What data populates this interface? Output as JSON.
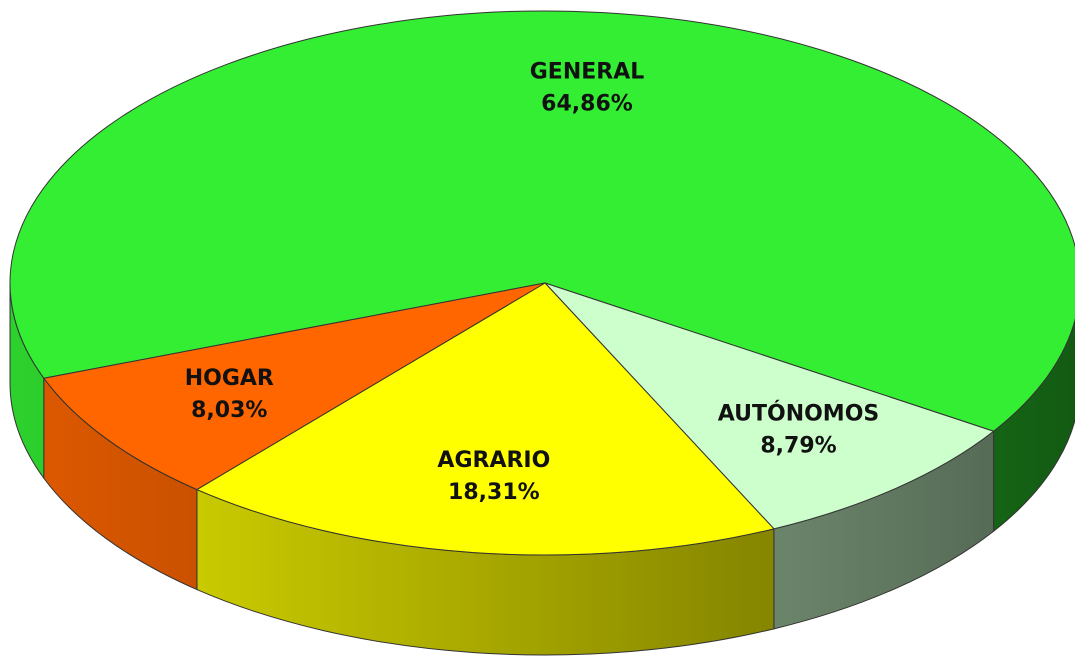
{
  "chart_data": {
    "type": "pie",
    "categories": [
      "GENERAL",
      "AUTÓNOMOS",
      "AGRARIO",
      "HOGAR"
    ],
    "values": [
      64.86,
      8.79,
      18.31,
      8.03
    ],
    "value_labels": [
      "64,86%",
      "8,79%",
      "18,31%",
      "8,03%"
    ],
    "colors": [
      "#33ee33",
      "#ccffcc",
      "#ffff00",
      "#ff6600"
    ]
  }
}
